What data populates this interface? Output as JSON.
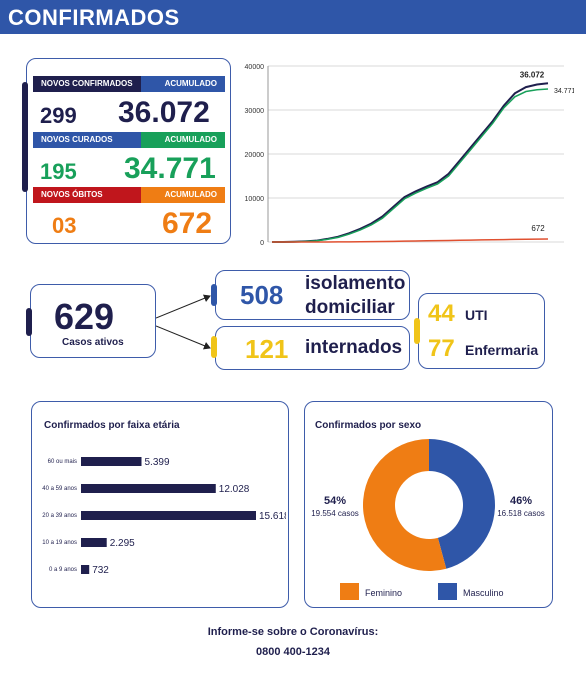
{
  "header": {
    "title": "CONFIRMADOS"
  },
  "summary": {
    "novos_confirmados_label": "NOVOS CONFIRMADOS",
    "acumulado_label": "ACUMULADO",
    "novos_confirmados": "299",
    "confirmados_acumulado": "36.072",
    "novos_curados_label": "NOVOS CURADOS",
    "novos_curados": "195",
    "curados_acumulado": "34.771",
    "novos_obitos_label": "NOVOS ÓBITOS",
    "novos_obitos": "03",
    "obitos_acumulado": "672"
  },
  "status": {
    "casos_ativos": "629",
    "casos_ativos_label": "Casos ativos",
    "isolamento": "508",
    "isolamento_label_1": "isolamento",
    "isolamento_label_2": "domiciliar",
    "internados": "121",
    "internados_label": "internados",
    "uti": "44",
    "uti_label": "UTI",
    "enfermaria": "77",
    "enfermaria_label": "Enfermaria"
  },
  "colors": {
    "navy": "#1f1f4d",
    "blue": "#2f56a8",
    "green": "#18a05a",
    "orange": "#ef7d14",
    "yellow": "#f0c419",
    "red": "#c0161c"
  },
  "chart_data": [
    {
      "type": "line",
      "ylim": [
        0,
        40000
      ],
      "yticks": [
        "40000",
        "30000",
        "20000",
        "10000",
        "0"
      ],
      "grid": true,
      "x": [
        0,
        1,
        2,
        3,
        4,
        5,
        6,
        7,
        8,
        9,
        10,
        11,
        12,
        13,
        14,
        15,
        16,
        17,
        18,
        19,
        20,
        21,
        22,
        23,
        24,
        25
      ],
      "series": [
        {
          "values": [
            0,
            0,
            50,
            150,
            300,
            700,
            1200,
            2000,
            3000,
            4200,
            5800,
            8000,
            10200,
            11500,
            12600,
            13600,
            15500,
            18500,
            21500,
            24500,
            27500,
            31000,
            33800,
            35200,
            35800,
            36072
          ],
          "end_label": "36.072"
        },
        {
          "values": [
            0,
            0,
            40,
            120,
            250,
            600,
            1050,
            1800,
            2750,
            3900,
            5400,
            7600,
            9800,
            11100,
            12200,
            13200,
            15000,
            18000,
            21000,
            24000,
            27000,
            30500,
            33000,
            34200,
            34600,
            34771
          ],
          "end_label": "34.771"
        },
        {
          "values": [
            0,
            0,
            0,
            2,
            5,
            10,
            20,
            35,
            55,
            80,
            110,
            150,
            190,
            230,
            270,
            310,
            350,
            390,
            430,
            470,
            510,
            550,
            590,
            630,
            655,
            672
          ],
          "end_label": "672"
        }
      ]
    },
    {
      "type": "bar",
      "title": "Confirmados por faixa etária",
      "categories": [
        "60 ou mais",
        "40 a 59 anos",
        "20 a 39 anos",
        "10 a 19 anos",
        "0 a 9 anos"
      ],
      "values": [
        5399,
        12028,
        15618,
        2295,
        732
      ],
      "value_labels": [
        "5.399",
        "12.028",
        "15.618",
        "2.295",
        "732"
      ]
    },
    {
      "type": "pie",
      "title": "Confirmados por sexo",
      "categories": [
        "Feminino",
        "Masculino"
      ],
      "values": [
        19554,
        16518
      ],
      "percent_labels": [
        "54%",
        "46%"
      ],
      "count_labels": [
        "19.554 casos",
        "16.518 casos"
      ],
      "colors": [
        "#ef7d14",
        "#2f56a8"
      ]
    }
  ],
  "footer": {
    "line1": "Informe-se sobre o Coronavírus:",
    "line2": "0800 400-1234"
  }
}
